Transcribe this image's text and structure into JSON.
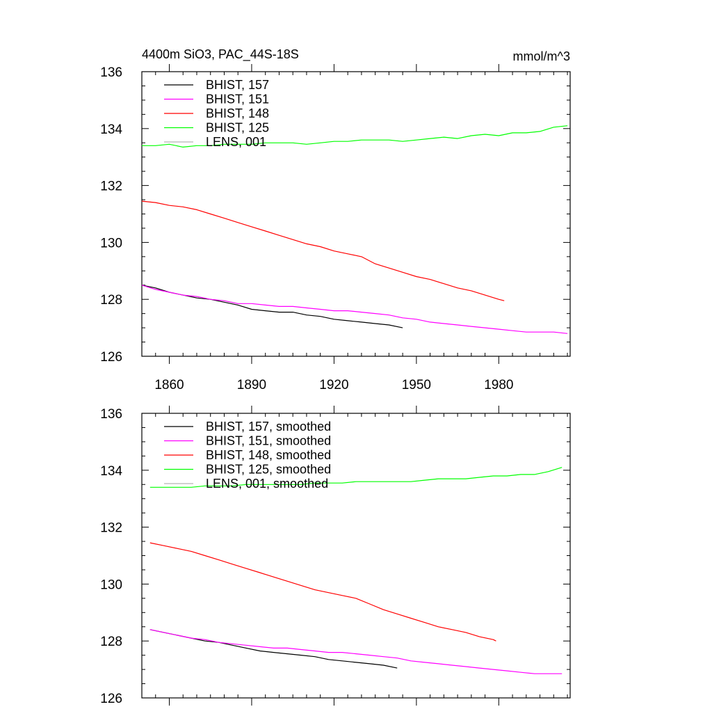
{
  "figure": {
    "title_left": "4400m SiO3, PAC_44S-18S",
    "title_right": "mmol/m^3"
  },
  "chart_data": [
    {
      "type": "line",
      "title": "4400m SiO3, PAC_44S-18S",
      "units": "mmol/m^3",
      "xlim": [
        1850,
        2006
      ],
      "ylim": [
        126,
        136
      ],
      "xticks": [
        1860,
        1890,
        1920,
        1950,
        1980
      ],
      "yticks": [
        126,
        128,
        130,
        132,
        134,
        136
      ],
      "show_x_tick_labels": true,
      "legend_position": "top-left",
      "series": [
        {
          "name": "BHIST, 157",
          "color": "#000000",
          "x": [
            1850,
            1855,
            1860,
            1865,
            1870,
            1875,
            1880,
            1885,
            1890,
            1895,
            1900,
            1905,
            1910,
            1915,
            1920,
            1925,
            1930,
            1935,
            1940,
            1945
          ],
          "y": [
            128.5,
            128.4,
            128.25,
            128.15,
            128.05,
            128.0,
            127.9,
            127.8,
            127.65,
            127.6,
            127.55,
            127.55,
            127.45,
            127.4,
            127.3,
            127.25,
            127.2,
            127.15,
            127.1,
            127.0
          ]
        },
        {
          "name": "BHIST, 151",
          "color": "#ff00ff",
          "x": [
            1850,
            1855,
            1860,
            1865,
            1870,
            1875,
            1880,
            1885,
            1890,
            1895,
            1900,
            1905,
            1910,
            1915,
            1920,
            1925,
            1930,
            1935,
            1940,
            1945,
            1950,
            1955,
            1960,
            1965,
            1970,
            1975,
            1980,
            1985,
            1990,
            1995,
            2000,
            2005
          ],
          "y": [
            128.5,
            128.35,
            128.25,
            128.15,
            128.1,
            128.0,
            127.95,
            127.85,
            127.85,
            127.8,
            127.75,
            127.75,
            127.7,
            127.65,
            127.6,
            127.6,
            127.55,
            127.5,
            127.45,
            127.35,
            127.3,
            127.2,
            127.15,
            127.1,
            127.05,
            127.0,
            126.95,
            126.9,
            126.85,
            126.85,
            126.85,
            126.8
          ]
        },
        {
          "name": "BHIST, 148",
          "color": "#ff0000",
          "x": [
            1850,
            1855,
            1860,
            1865,
            1870,
            1875,
            1880,
            1885,
            1890,
            1895,
            1900,
            1905,
            1910,
            1915,
            1920,
            1925,
            1930,
            1935,
            1940,
            1945,
            1950,
            1955,
            1960,
            1965,
            1970,
            1975,
            1980,
            1982
          ],
          "y": [
            131.45,
            131.4,
            131.3,
            131.25,
            131.15,
            131.0,
            130.85,
            130.7,
            130.55,
            130.4,
            130.25,
            130.1,
            129.95,
            129.85,
            129.7,
            129.6,
            129.5,
            129.25,
            129.1,
            128.95,
            128.8,
            128.7,
            128.55,
            128.4,
            128.3,
            128.15,
            128.0,
            127.95
          ]
        },
        {
          "name": "BHIST, 125",
          "color": "#00ff00",
          "x": [
            1850,
            1855,
            1860,
            1865,
            1870,
            1875,
            1880,
            1885,
            1890,
            1895,
            1900,
            1905,
            1910,
            1915,
            1920,
            1925,
            1930,
            1935,
            1940,
            1945,
            1950,
            1955,
            1960,
            1965,
            1970,
            1975,
            1980,
            1985,
            1990,
            1995,
            2000,
            2005
          ],
          "y": [
            133.4,
            133.4,
            133.45,
            133.35,
            133.4,
            133.4,
            133.45,
            133.45,
            133.45,
            133.5,
            133.5,
            133.5,
            133.45,
            133.5,
            133.55,
            133.55,
            133.6,
            133.6,
            133.6,
            133.55,
            133.6,
            133.65,
            133.7,
            133.65,
            133.75,
            133.8,
            133.75,
            133.85,
            133.85,
            133.9,
            134.05,
            134.1
          ]
        },
        {
          "name": "LENS, 001",
          "color": "#b4b4b4",
          "x": [],
          "y": []
        }
      ]
    },
    {
      "type": "line",
      "title": "",
      "xlim": [
        1850,
        2006
      ],
      "ylim": [
        126,
        136
      ],
      "xticks": [
        1860,
        1890,
        1920,
        1950,
        1980
      ],
      "yticks": [
        126,
        128,
        130,
        132,
        134,
        136
      ],
      "show_x_tick_labels": false,
      "legend_position": "top-left",
      "series": [
        {
          "name": "BHIST, 157, smoothed",
          "color": "#000000",
          "x": [
            1853,
            1858,
            1863,
            1868,
            1873,
            1878,
            1883,
            1888,
            1893,
            1898,
            1903,
            1908,
            1913,
            1918,
            1923,
            1928,
            1933,
            1938,
            1943
          ],
          "y": [
            128.4,
            128.3,
            128.2,
            128.1,
            128.0,
            127.95,
            127.85,
            127.75,
            127.65,
            127.6,
            127.55,
            127.5,
            127.45,
            127.35,
            127.3,
            127.25,
            127.2,
            127.15,
            127.05
          ]
        },
        {
          "name": "BHIST, 151, smoothed",
          "color": "#ff00ff",
          "x": [
            1853,
            1858,
            1863,
            1868,
            1873,
            1878,
            1883,
            1888,
            1893,
            1898,
            1903,
            1908,
            1913,
            1918,
            1923,
            1928,
            1933,
            1938,
            1943,
            1948,
            1953,
            1958,
            1963,
            1968,
            1973,
            1978,
            1983,
            1988,
            1993,
            1998,
            2003
          ],
          "y": [
            128.4,
            128.3,
            128.2,
            128.1,
            128.05,
            127.95,
            127.9,
            127.85,
            127.8,
            127.75,
            127.75,
            127.7,
            127.65,
            127.6,
            127.6,
            127.55,
            127.5,
            127.45,
            127.4,
            127.3,
            127.25,
            127.2,
            127.15,
            127.1,
            127.05,
            127.0,
            126.95,
            126.9,
            126.85,
            126.85,
            126.85
          ]
        },
        {
          "name": "BHIST, 148, smoothed",
          "color": "#ff0000",
          "x": [
            1853,
            1858,
            1863,
            1868,
            1873,
            1878,
            1883,
            1888,
            1893,
            1898,
            1903,
            1908,
            1913,
            1918,
            1923,
            1928,
            1933,
            1938,
            1943,
            1948,
            1953,
            1958,
            1963,
            1968,
            1973,
            1978,
            1979
          ],
          "y": [
            131.45,
            131.35,
            131.25,
            131.15,
            131.0,
            130.85,
            130.7,
            130.55,
            130.4,
            130.25,
            130.1,
            129.95,
            129.8,
            129.7,
            129.6,
            129.5,
            129.3,
            129.1,
            128.95,
            128.8,
            128.65,
            128.5,
            128.4,
            128.3,
            128.15,
            128.05,
            128.0
          ]
        },
        {
          "name": "BHIST, 125, smoothed",
          "color": "#00ff00",
          "x": [
            1853,
            1858,
            1863,
            1868,
            1873,
            1878,
            1883,
            1888,
            1893,
            1898,
            1903,
            1908,
            1913,
            1918,
            1923,
            1928,
            1933,
            1938,
            1943,
            1948,
            1953,
            1958,
            1963,
            1968,
            1973,
            1978,
            1983,
            1988,
            1993,
            1998,
            2003
          ],
          "y": [
            133.4,
            133.4,
            133.4,
            133.4,
            133.45,
            133.45,
            133.45,
            133.5,
            133.5,
            133.5,
            133.5,
            133.5,
            133.55,
            133.55,
            133.55,
            133.6,
            133.6,
            133.6,
            133.6,
            133.6,
            133.65,
            133.7,
            133.7,
            133.7,
            133.75,
            133.8,
            133.8,
            133.85,
            133.85,
            133.95,
            134.1
          ]
        },
        {
          "name": "LENS, 001, smoothed",
          "color": "#b4b4b4",
          "x": [],
          "y": []
        }
      ]
    }
  ]
}
